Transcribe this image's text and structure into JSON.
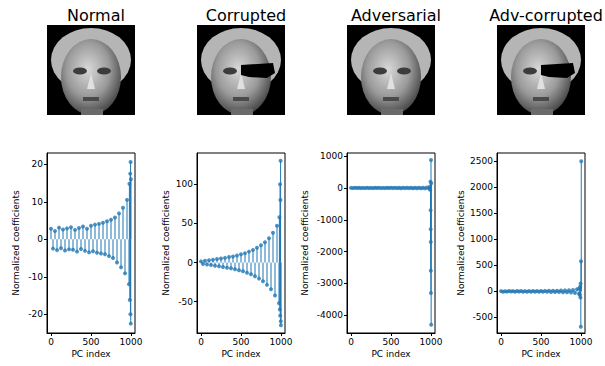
{
  "chart_data": [
    {
      "type": "stem",
      "title": "Normal",
      "xlabel": "PC index",
      "ylabel": "Normalized coefficients",
      "color": "#1f77b4",
      "marker": "o",
      "line_style": "solid",
      "x": [
        0,
        25,
        50,
        75,
        100,
        125,
        150,
        175,
        200,
        225,
        250,
        275,
        300,
        325,
        350,
        375,
        400,
        425,
        450,
        475,
        500,
        525,
        550,
        575,
        600,
        625,
        650,
        675,
        700,
        725,
        750,
        775,
        800,
        825,
        850,
        875,
        900,
        925,
        950,
        975,
        980,
        985,
        990,
        993,
        995,
        997,
        999
      ],
      "values": [
        2.8,
        -2.5,
        2.2,
        -2.9,
        3.1,
        -2.4,
        2.6,
        -3.0,
        2.9,
        -2.7,
        3.2,
        -2.8,
        2.5,
        -3.3,
        3.0,
        -2.6,
        3.4,
        -3.1,
        2.8,
        -3.5,
        3.6,
        -3.2,
        3.9,
        -3.6,
        4.1,
        -3.8,
        4.4,
        -4.0,
        4.8,
        -4.5,
        5.2,
        -5.0,
        5.8,
        -6.2,
        6.9,
        -7.5,
        8.4,
        -9.1,
        10.5,
        -12.0,
        14.8,
        -16.2,
        17.5,
        -20.0,
        20.6,
        -22.5,
        16.0
      ],
      "xlim": [
        -50,
        1050
      ],
      "xticks": [
        0,
        500,
        1000
      ],
      "ylim": [
        -25,
        23
      ],
      "yticks": [
        -20,
        -10,
        0,
        10,
        20
      ],
      "grid": false
    },
    {
      "type": "stem",
      "title": "Corrupted",
      "xlabel": "PC index",
      "ylabel": "Normalized coefficients",
      "color": "#1f77b4",
      "marker": "o",
      "line_style": "solid",
      "x": [
        0,
        25,
        50,
        75,
        100,
        125,
        150,
        175,
        200,
        225,
        250,
        275,
        300,
        325,
        350,
        375,
        400,
        425,
        450,
        475,
        500,
        525,
        550,
        575,
        600,
        625,
        650,
        675,
        700,
        725,
        750,
        775,
        800,
        825,
        850,
        875,
        900,
        925,
        950,
        975,
        980,
        985,
        988,
        990,
        993,
        995,
        997,
        999
      ],
      "values": [
        1.5,
        -1.8,
        2.2,
        -2.5,
        3.0,
        -3.2,
        3.6,
        -4.0,
        4.5,
        -4.8,
        5.2,
        -5.6,
        6.0,
        -6.5,
        7.0,
        -7.4,
        7.8,
        -8.5,
        9.0,
        -9.8,
        10.5,
        -11.2,
        12.0,
        -13.0,
        14.0,
        -15.0,
        16.0,
        -17.5,
        19.0,
        -20.5,
        22.0,
        -24.0,
        26.0,
        -28.5,
        31.0,
        -34.0,
        38.0,
        -42.0,
        47.0,
        -52.0,
        58.0,
        -60.0,
        100.0,
        -68.0,
        80.0,
        130.0,
        -75.0,
        -80.0
      ],
      "xlim": [
        -50,
        1050
      ],
      "xticks": [
        0,
        500,
        1000
      ],
      "ylim": [
        -90,
        140
      ],
      "yticks": [
        -50,
        0,
        50,
        100
      ],
      "grid": false
    },
    {
      "type": "stem",
      "title": "Adversarial",
      "xlabel": "PC index",
      "ylabel": "Normalized coefficients",
      "color": "#1f77b4",
      "marker": "o",
      "line_style": "solid",
      "x": [
        0,
        25,
        50,
        75,
        100,
        125,
        150,
        175,
        200,
        225,
        250,
        275,
        300,
        325,
        350,
        375,
        400,
        425,
        450,
        475,
        500,
        525,
        550,
        575,
        600,
        625,
        650,
        675,
        700,
        725,
        750,
        775,
        800,
        825,
        850,
        875,
        900,
        925,
        950,
        975,
        985,
        990,
        993,
        995,
        996,
        997,
        998,
        999,
        1000,
        1002,
        1004
      ],
      "values": [
        3,
        -4,
        5,
        -3,
        4,
        -5,
        3,
        -4,
        5,
        -4,
        3,
        -5,
        4,
        -3,
        5,
        -4,
        3,
        -5,
        4,
        -3,
        5,
        -4,
        6,
        -5,
        4,
        -6,
        5,
        -4,
        6,
        -5,
        7,
        -6,
        8,
        -7,
        9,
        -8,
        10,
        -12,
        14,
        -18,
        40,
        -60,
        200,
        -700,
        -1300,
        -1700,
        -2600,
        -3300,
        880,
        -4300,
        150
      ],
      "xlim": [
        -50,
        1050
      ],
      "xticks": [
        0,
        500,
        1000
      ],
      "ylim": [
        -4560,
        1100
      ],
      "yticks": [
        -4000,
        -3000,
        -2000,
        -1000,
        0,
        1000
      ],
      "grid": false
    },
    {
      "type": "stem",
      "title": "Adv-corrupted",
      "xlabel": "PC index",
      "ylabel": "Normalized coefficients",
      "color": "#1f77b4",
      "marker": "o",
      "line_style": "solid",
      "x": [
        0,
        25,
        50,
        75,
        100,
        125,
        150,
        175,
        200,
        225,
        250,
        275,
        300,
        325,
        350,
        375,
        400,
        425,
        450,
        475,
        500,
        525,
        550,
        575,
        600,
        625,
        650,
        675,
        700,
        725,
        750,
        775,
        800,
        825,
        850,
        875,
        900,
        925,
        950,
        975,
        980,
        985,
        990,
        993,
        995,
        998,
        1000,
        1003
      ],
      "values": [
        5,
        -6,
        4,
        -5,
        6,
        -4,
        5,
        -6,
        7,
        -5,
        6,
        -7,
        5,
        -6,
        7,
        -6,
        8,
        -7,
        6,
        -8,
        9,
        -8,
        10,
        -9,
        11,
        -10,
        12,
        -11,
        14,
        -13,
        16,
        -15,
        19,
        -18,
        23,
        -22,
        28,
        -30,
        40,
        -45,
        60,
        -70,
        90,
        -120,
        150,
        -680,
        580,
        2500
      ],
      "xlim": [
        -50,
        1050
      ],
      "xticks": [
        0,
        500,
        1000
      ],
      "ylim": [
        -800,
        2660
      ],
      "yticks": [
        -500,
        0,
        500,
        1000,
        1500,
        2000,
        2500
      ],
      "grid": false
    }
  ]
}
